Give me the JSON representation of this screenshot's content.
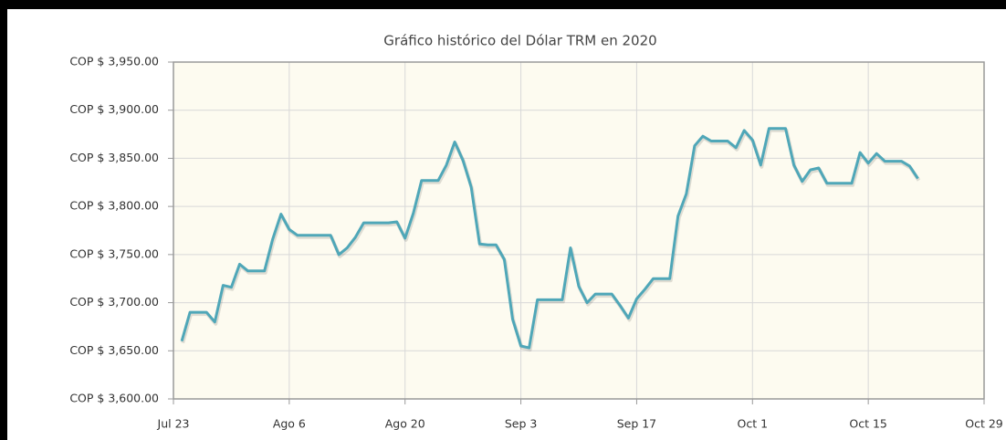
{
  "chart_data": {
    "type": "line",
    "title": "Gráfico histórico del Dólar TRM en 2020",
    "x": [
      "2020-07-24",
      "2020-07-25",
      "2020-07-26",
      "2020-07-27",
      "2020-07-28",
      "2020-07-29",
      "2020-07-30",
      "2020-07-31",
      "2020-08-01",
      "2020-08-02",
      "2020-08-03",
      "2020-08-04",
      "2020-08-05",
      "2020-08-06",
      "2020-08-07",
      "2020-08-08",
      "2020-08-09",
      "2020-08-10",
      "2020-08-11",
      "2020-08-12",
      "2020-08-13",
      "2020-08-14",
      "2020-08-15",
      "2020-08-16",
      "2020-08-17",
      "2020-08-18",
      "2020-08-19",
      "2020-08-20",
      "2020-08-21",
      "2020-08-22",
      "2020-08-23",
      "2020-08-24",
      "2020-08-25",
      "2020-08-26",
      "2020-08-27",
      "2020-08-28",
      "2020-08-29",
      "2020-08-30",
      "2020-08-31",
      "2020-09-01",
      "2020-09-02",
      "2020-09-03",
      "2020-09-04",
      "2020-09-05",
      "2020-09-06",
      "2020-09-07",
      "2020-09-08",
      "2020-09-09",
      "2020-09-10",
      "2020-09-11",
      "2020-09-12",
      "2020-09-13",
      "2020-09-14",
      "2020-09-15",
      "2020-09-16",
      "2020-09-17",
      "2020-09-18",
      "2020-09-19",
      "2020-09-20",
      "2020-09-21",
      "2020-09-22",
      "2020-09-23",
      "2020-09-24",
      "2020-09-25",
      "2020-09-26",
      "2020-09-27",
      "2020-09-28",
      "2020-09-29",
      "2020-09-30",
      "2020-10-01",
      "2020-10-02",
      "2020-10-03",
      "2020-10-04",
      "2020-10-05",
      "2020-10-06",
      "2020-10-07",
      "2020-10-08",
      "2020-10-09",
      "2020-10-10",
      "2020-10-11",
      "2020-10-12",
      "2020-10-13",
      "2020-10-14",
      "2020-10-15",
      "2020-10-16",
      "2020-10-17",
      "2020-10-18",
      "2020-10-19",
      "2020-10-20",
      "2020-10-21"
    ],
    "series": [
      {
        "name": "Dólar TRM",
        "color": "#4fa7b8",
        "values": [
          3660,
          3690,
          3690,
          3690,
          3680,
          3718,
          3716,
          3740,
          3733,
          3733,
          3733,
          3766,
          3792,
          3776,
          3770,
          3770,
          3770,
          3770,
          3770,
          3750,
          3757,
          3768,
          3783,
          3783,
          3783,
          3783,
          3784,
          3767,
          3793,
          3827,
          3827,
          3827,
          3843,
          3867,
          3848,
          3820,
          3761,
          3760,
          3760,
          3745,
          3683,
          3655,
          3653,
          3703,
          3703,
          3703,
          3703,
          3757,
          3717,
          3700,
          3709,
          3709,
          3709,
          3697,
          3684,
          3704,
          3714,
          3725,
          3725,
          3725,
          3790,
          3813,
          3863,
          3873,
          3868,
          3868,
          3868,
          3861,
          3879,
          3869,
          3843,
          3881,
          3881,
          3881,
          3843,
          3826,
          3838,
          3840,
          3824,
          3824,
          3824,
          3824,
          3856,
          3845,
          3855,
          3847,
          3847,
          3847,
          3842,
          3829
        ]
      }
    ],
    "xlim": [
      "2020-07-23",
      "2020-10-29"
    ],
    "xticks": [
      {
        "value": "2020-07-23",
        "label": "Jul 23"
      },
      {
        "value": "2020-08-06",
        "label": "Ago 6"
      },
      {
        "value": "2020-08-20",
        "label": "Ago 20"
      },
      {
        "value": "2020-09-03",
        "label": "Sep 3"
      },
      {
        "value": "2020-09-17",
        "label": "Sep 17"
      },
      {
        "value": "2020-10-01",
        "label": "Oct 1"
      },
      {
        "value": "2020-10-15",
        "label": "Oct 15"
      },
      {
        "value": "2020-10-29",
        "label": "Oct 29"
      }
    ],
    "ylim": [
      3600,
      3950
    ],
    "yticks": [
      {
        "value": 3600,
        "label": "COP $ 3,600.00"
      },
      {
        "value": 3650,
        "label": "COP $ 3,650.00"
      },
      {
        "value": 3700,
        "label": "COP $ 3,700.00"
      },
      {
        "value": 3750,
        "label": "COP $ 3,750.00"
      },
      {
        "value": 3800,
        "label": "COP $ 3,800.00"
      },
      {
        "value": 3850,
        "label": "COP $ 3,850.00"
      },
      {
        "value": 3900,
        "label": "COP $ 3,900.00"
      },
      {
        "value": 3950,
        "label": "COP $ 3,950.00"
      }
    ],
    "grid": true
  }
}
